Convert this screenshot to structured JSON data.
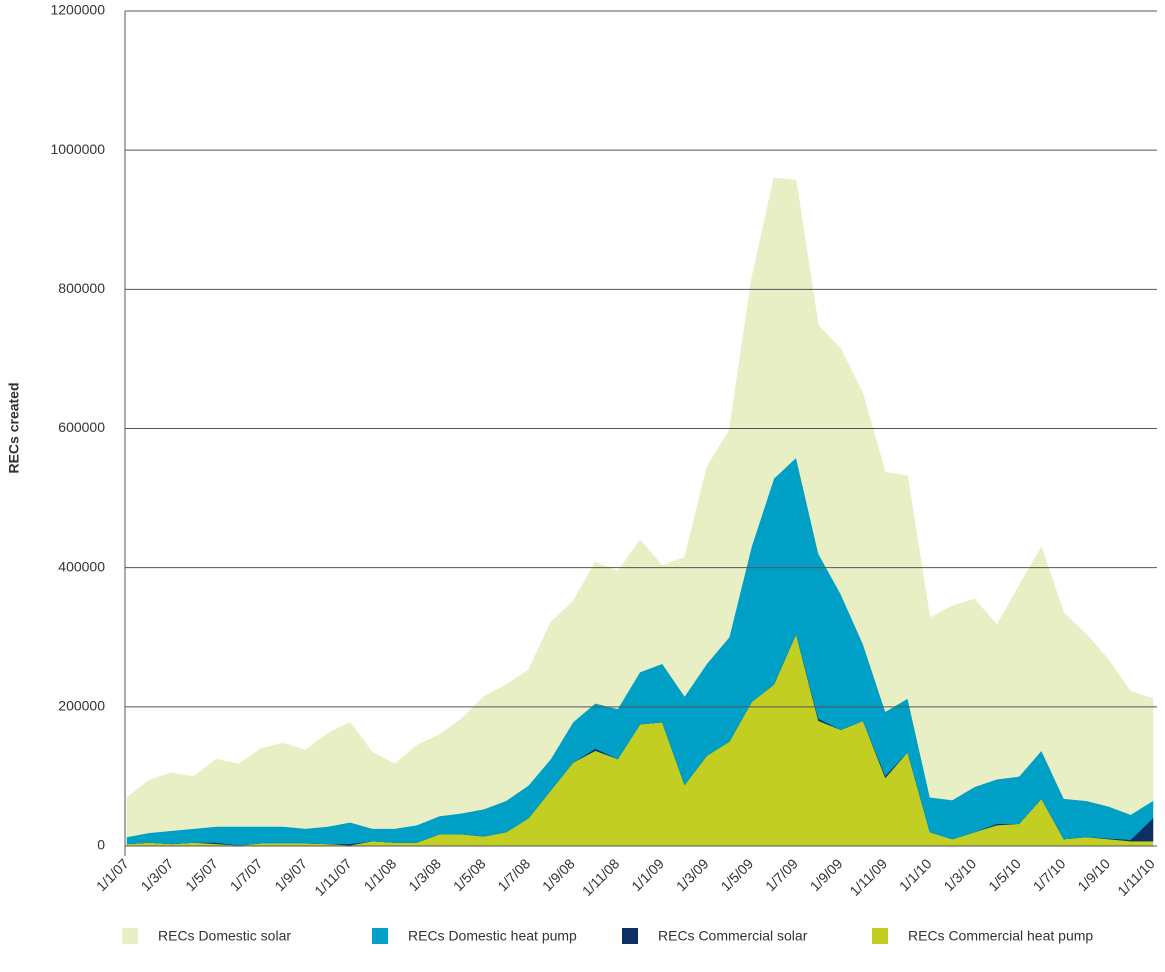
{
  "chart_data": {
    "type": "stacked_area",
    "y_label": "RECs created",
    "categories": [
      "1/1/07",
      null,
      "1/3/07",
      null,
      "1/5/07",
      null,
      "1/7/07",
      null,
      "1/9/07",
      null,
      "1/11/07",
      null,
      "1/1/08",
      null,
      "1/3/08",
      null,
      "1/5/08",
      null,
      "1/7/08",
      null,
      "1/9/08",
      null,
      "1/11/08",
      null,
      "1/1/09",
      null,
      "1/3/09",
      null,
      "1/5/09",
      null,
      "1/7/09",
      null,
      "1/9/09",
      null,
      "1/11/09",
      null,
      "1/1/10",
      null,
      "1/3/10",
      null,
      "1/5/10",
      null,
      "1/7/10",
      null,
      "1/9/10",
      null,
      "1/11/10"
    ],
    "series": [
      {
        "name": "RECs Domestic solar",
        "color": "#e8efc4",
        "values": [
          57000,
          76000,
          83000,
          75000,
          97000,
          90000,
          112000,
          120000,
          113000,
          134000,
          144000,
          110000,
          93000,
          115000,
          117000,
          136000,
          162000,
          167000,
          166000,
          197000,
          174000,
          203000,
          198000,
          190000,
          141000,
          200000,
          283000,
          298000,
          385000,
          432000,
          399000,
          328000,
          353000,
          360000,
          344000,
          320000,
          258000,
          279000,
          270000,
          222000,
          275000,
          293000,
          267000,
          240000,
          211000,
          177000,
          147000
        ]
      },
      {
        "name": "RECs Domestic heat pump",
        "color": "#00a0c6",
        "values": [
          10000,
          14000,
          19000,
          20000,
          23000,
          27000,
          24000,
          24000,
          21000,
          25000,
          31000,
          18000,
          20000,
          25000,
          26000,
          30000,
          39000,
          45000,
          47000,
          45000,
          58000,
          65000,
          72000,
          75000,
          84000,
          127000,
          132000,
          150000,
          223000,
          296000,
          253000,
          237000,
          195000,
          110000,
          92000,
          77000,
          50000,
          56000,
          65000,
          64000,
          68000,
          69000,
          58000,
          52000,
          46000,
          36000,
          25000
        ]
      },
      {
        "name": "RECs Commercial solar",
        "color": "#0d2f63",
        "values": [
          0,
          0,
          0,
          0,
          2000,
          0,
          0,
          0,
          0,
          0,
          2000,
          0,
          0,
          0,
          0,
          0,
          0,
          0,
          0,
          0,
          0,
          3000,
          0,
          0,
          0,
          0,
          0,
          0,
          0,
          0,
          0,
          3000,
          0,
          0,
          3000,
          0,
          0,
          0,
          0,
          2000,
          0,
          0,
          0,
          0,
          1000,
          2000,
          33000
        ]
      },
      {
        "name": "RECs Commercial heat pump",
        "color": "#c2cf22",
        "values": [
          3000,
          5000,
          3000,
          5000,
          3000,
          1000,
          4000,
          4000,
          4000,
          3000,
          1000,
          7000,
          5000,
          5000,
          17000,
          17000,
          14000,
          20000,
          40000,
          80000,
          120000,
          137000,
          125000,
          175000,
          178000,
          88000,
          130000,
          150000,
          207000,
          232000,
          305000,
          180000,
          167000,
          180000,
          98000,
          135000,
          20000,
          10000,
          20000,
          30000,
          32000,
          68000,
          10000,
          13000,
          10000,
          7000,
          7000
        ]
      }
    ],
    "ylim": [
      0,
      1200000
    ],
    "yticks": [
      0,
      200000,
      400000,
      600000,
      800000,
      1000000,
      1200000
    ],
    "grid": true
  }
}
